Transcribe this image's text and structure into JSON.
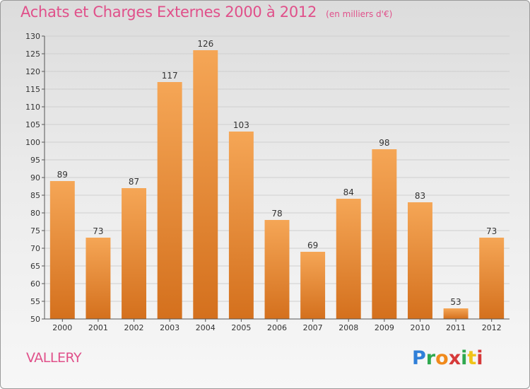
{
  "title": "Achats et Charges Externes 2000 à 2012",
  "subtitle": "(en milliers d'€)",
  "commune": "VALLERY",
  "logo": {
    "text": "Proxiti",
    "letters": [
      "P",
      "r",
      "o",
      "x",
      "i",
      "t",
      "i"
    ],
    "colors": [
      "#2f7fd8",
      "#2fa84f",
      "#f08a1c",
      "#d63a3a",
      "#2fa84f",
      "#f0c419",
      "#d63a3a"
    ]
  },
  "colors": {
    "bar_top": "#f5a656",
    "bar_bottom": "#d4701d",
    "title": "#e0508a",
    "grid": "#cfcfcf",
    "axis_text": "#333333"
  },
  "chart_data": {
    "type": "bar",
    "categories": [
      "2000",
      "2001",
      "2002",
      "2003",
      "2004",
      "2005",
      "2006",
      "2007",
      "2008",
      "2009",
      "2010",
      "2011",
      "2012"
    ],
    "values": [
      89,
      73,
      87,
      117,
      126,
      103,
      78,
      69,
      84,
      98,
      83,
      53,
      73
    ],
    "ylim": [
      50,
      130
    ],
    "yticks": [
      50,
      55,
      60,
      65,
      70,
      75,
      80,
      85,
      90,
      95,
      100,
      105,
      110,
      115,
      120,
      125,
      130
    ],
    "grid": true,
    "data_labels": true
  }
}
